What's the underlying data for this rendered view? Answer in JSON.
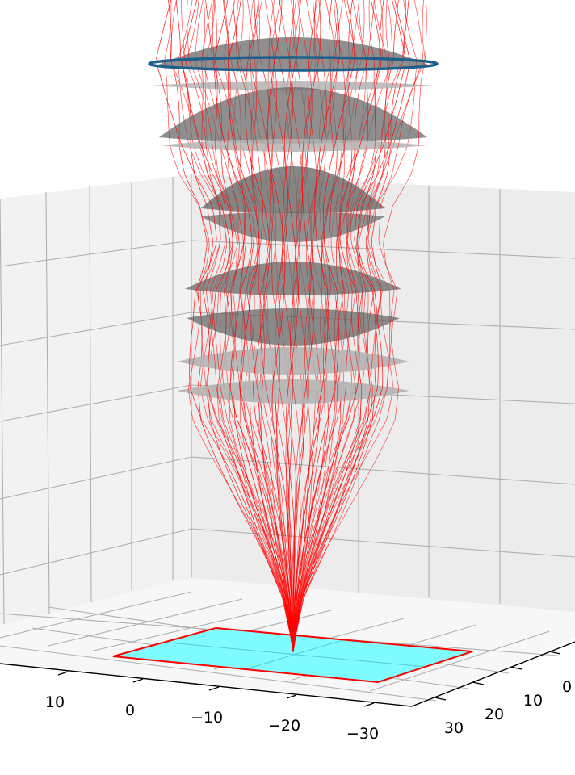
{
  "chart_data": {
    "type": "3d-ray-trace",
    "title": "",
    "xlabel": "",
    "ylabel": "",
    "zlabel": "",
    "axis_left": {
      "ticks": [
        10,
        0,
        -10,
        -20,
        -30
      ],
      "tick_labels": [
        "10",
        "0",
        "−10",
        "−20",
        "−30"
      ]
    },
    "axis_right": {
      "ticks": [
        30,
        20,
        10,
        0
      ],
      "tick_labels": [
        "30",
        "20",
        "10",
        "0"
      ]
    },
    "grid": true,
    "lens_elements": 9,
    "ray_count": 80,
    "colors": {
      "rays": "#ff0000",
      "lens_dark": "#6a6a6a",
      "lens_light": "#b4b4b4",
      "aperture": "#1f5f8b",
      "image_plane_fill": "#7ffcff",
      "image_plane_edge": "#ff0000",
      "pane_left": "#f2f2f2",
      "pane_back": "#ececec",
      "pane_floor": "#f7f7f7",
      "grid": "#b0b0b0",
      "axis": "#000000"
    }
  }
}
